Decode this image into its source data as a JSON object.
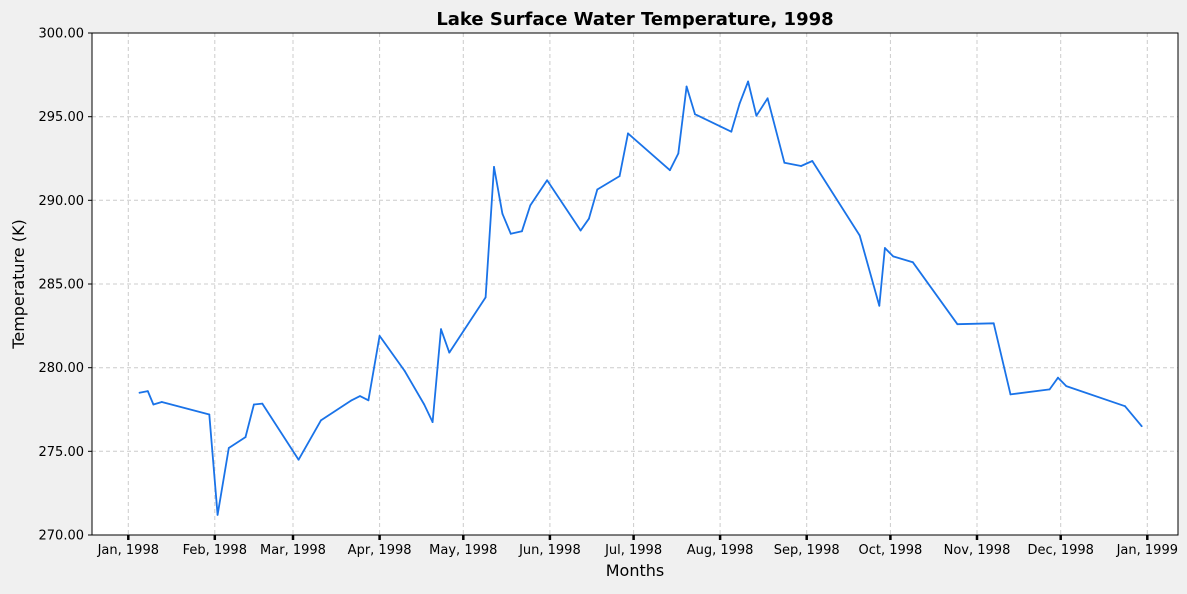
{
  "chart_data": {
    "type": "line",
    "title": "Lake Surface Water Temperature, 1998",
    "xlabel": "Months",
    "ylabel": "Temperature (K)",
    "ylim": [
      270,
      300
    ],
    "xlim": [
      "1997-12-19",
      "1999-01-12"
    ],
    "grid": true,
    "y_ticks": [
      "270.00",
      "275.00",
      "280.00",
      "285.00",
      "290.00",
      "295.00",
      "300.00"
    ],
    "y_tick_values": [
      270,
      275,
      280,
      285,
      290,
      295,
      300
    ],
    "x_ticks": [
      {
        "date": "1998-01-01",
        "label": "Jan, 1998"
      },
      {
        "date": "1998-02-01",
        "label": "Feb, 1998"
      },
      {
        "date": "1998-03-01",
        "label": "Mar, 1998"
      },
      {
        "date": "1998-04-01",
        "label": "Apr, 1998"
      },
      {
        "date": "1998-05-01",
        "label": "May, 1998"
      },
      {
        "date": "1998-06-01",
        "label": "Jun, 1998"
      },
      {
        "date": "1998-07-01",
        "label": "Jul, 1998"
      },
      {
        "date": "1998-08-01",
        "label": "Aug, 1998"
      },
      {
        "date": "1998-09-01",
        "label": "Sep, 1998"
      },
      {
        "date": "1998-10-01",
        "label": "Oct, 1998"
      },
      {
        "date": "1998-11-01",
        "label": "Nov, 1998"
      },
      {
        "date": "1998-12-01",
        "label": "Dec, 1998"
      },
      {
        "date": "1999-01-01",
        "label": "Jan, 1999"
      }
    ],
    "series": [
      {
        "color": "#1a73e8",
        "points": [
          [
            "1998-01-05",
            278.5
          ],
          [
            "1998-01-08",
            278.6
          ],
          [
            "1998-01-10",
            277.8
          ],
          [
            "1998-01-13",
            277.95
          ],
          [
            "1998-01-30",
            277.2
          ],
          [
            "1998-02-02",
            271.2
          ],
          [
            "1998-02-06",
            275.2
          ],
          [
            "1998-02-12",
            275.85
          ],
          [
            "1998-02-15",
            277.8
          ],
          [
            "1998-02-18",
            277.85
          ],
          [
            "1998-03-03",
            274.5
          ],
          [
            "1998-03-11",
            276.85
          ],
          [
            "1998-03-22",
            278.05
          ],
          [
            "1998-03-25",
            278.3
          ],
          [
            "1998-03-28",
            278.05
          ],
          [
            "1998-04-01",
            281.9
          ],
          [
            "1998-04-10",
            279.8
          ],
          [
            "1998-04-17",
            277.8
          ],
          [
            "1998-04-20",
            276.75
          ],
          [
            "1998-04-23",
            282.3
          ],
          [
            "1998-04-26",
            280.9
          ],
          [
            "1998-05-09",
            284.2
          ],
          [
            "1998-05-12",
            292.0
          ],
          [
            "1998-05-15",
            289.2
          ],
          [
            "1998-05-18",
            288.0
          ],
          [
            "1998-05-22",
            288.15
          ],
          [
            "1998-05-25",
            289.7
          ],
          [
            "1998-05-31",
            291.2
          ],
          [
            "1998-06-12",
            288.2
          ],
          [
            "1998-06-15",
            288.9
          ],
          [
            "1998-06-18",
            290.65
          ],
          [
            "1998-06-26",
            291.45
          ],
          [
            "1998-06-29",
            294.0
          ],
          [
            "1998-07-14",
            291.8
          ],
          [
            "1998-07-17",
            292.8
          ],
          [
            "1998-07-20",
            296.8
          ],
          [
            "1998-07-23",
            295.15
          ],
          [
            "1998-08-05",
            294.1
          ],
          [
            "1998-08-08",
            295.8
          ],
          [
            "1998-08-11",
            297.1
          ],
          [
            "1998-08-14",
            295.05
          ],
          [
            "1998-08-18",
            296.1
          ],
          [
            "1998-08-24",
            292.25
          ],
          [
            "1998-08-30",
            292.05
          ],
          [
            "1998-09-03",
            292.35
          ],
          [
            "1998-09-20",
            287.9
          ],
          [
            "1998-09-27",
            283.7
          ],
          [
            "1998-09-29",
            287.15
          ],
          [
            "1998-10-02",
            286.65
          ],
          [
            "1998-10-09",
            286.3
          ],
          [
            "1998-10-25",
            282.6
          ],
          [
            "1998-11-07",
            282.65
          ],
          [
            "1998-11-13",
            278.4
          ],
          [
            "1998-11-27",
            278.7
          ],
          [
            "1998-11-30",
            279.4
          ],
          [
            "1998-12-03",
            278.9
          ],
          [
            "1998-12-24",
            277.7
          ],
          [
            "1998-12-30",
            276.5
          ]
        ]
      }
    ]
  }
}
